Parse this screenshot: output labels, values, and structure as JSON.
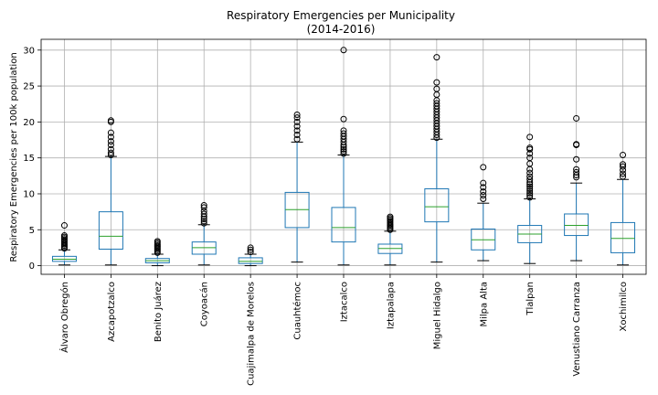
{
  "chart_data": {
    "type": "box",
    "title": "Respiratory Emergencies per Municipality",
    "subtitle": "(2014-2016)",
    "ylabel": "Respiratory Emergencies per 100k population",
    "xlabel": "",
    "ylim": [
      -1.2,
      31.5
    ],
    "yticks": [
      0,
      5,
      10,
      15,
      20,
      25,
      30
    ],
    "grid": true,
    "colors": {
      "box": "#1f77b4",
      "median": "#2ca02c",
      "cap": "#000000",
      "grid": "#b0b0b0"
    },
    "categories": [
      "Álvaro Obregón",
      "Azcapotzalco",
      "Benito Juárez",
      "Coyoacán",
      "Cuajimalpa de Morelos",
      "Cuauhtémoc",
      "Iztacalco",
      "Iztapalapa",
      "Miguel Hidalgo",
      "Milpa Alta",
      "Tlalpan",
      "Venustiano Carranza",
      "Xochimilco"
    ],
    "boxes": [
      {
        "whislo": 0.1,
        "q1": 0.6,
        "med": 0.9,
        "q3": 1.3,
        "whishi": 2.2,
        "fliers": [
          2.4,
          2.6,
          2.8,
          3.0,
          3.2,
          3.4,
          3.6,
          3.8,
          4.0,
          4.2,
          5.6
        ]
      },
      {
        "whislo": 0.1,
        "q1": 2.3,
        "med": 4.1,
        "q3": 7.5,
        "whishi": 15.2,
        "fliers": [
          15.4,
          15.7,
          16.2,
          16.8,
          17.3,
          17.9,
          18.5,
          20.0,
          20.2
        ]
      },
      {
        "whislo": 0.0,
        "q1": 0.4,
        "med": 0.7,
        "q3": 1.0,
        "whishi": 1.6,
        "fliers": [
          1.8,
          2.0,
          2.2,
          2.4,
          2.6,
          2.8,
          3.0,
          3.2,
          3.4
        ]
      },
      {
        "whislo": 0.1,
        "q1": 1.6,
        "med": 2.5,
        "q3": 3.3,
        "whishi": 5.7,
        "fliers": [
          5.9,
          6.2,
          6.5,
          6.8,
          7.2,
          7.6,
          8.1,
          8.4
        ]
      },
      {
        "whislo": 0.0,
        "q1": 0.3,
        "med": 0.6,
        "q3": 1.1,
        "whishi": 1.6,
        "fliers": [
          1.9,
          2.2,
          2.5
        ]
      },
      {
        "whislo": 0.5,
        "q1": 5.3,
        "med": 7.8,
        "q3": 10.2,
        "whishi": 17.2,
        "fliers": [
          17.6,
          18.2,
          18.8,
          19.4,
          20.0,
          20.6,
          21.0
        ]
      },
      {
        "whislo": 0.1,
        "q1": 3.3,
        "med": 5.3,
        "q3": 8.1,
        "whishi": 15.4,
        "fliers": [
          15.6,
          15.9,
          16.2,
          16.5,
          16.8,
          17.2,
          17.6,
          18.0,
          18.4,
          18.8,
          20.4,
          30.0
        ]
      },
      {
        "whislo": 0.1,
        "q1": 1.7,
        "med": 2.4,
        "q3": 3.0,
        "whishi": 4.8,
        "fliers": [
          5.0,
          5.2,
          5.4,
          5.6,
          5.8,
          6.0,
          6.2,
          6.4,
          6.6,
          6.8
        ]
      },
      {
        "whislo": 0.5,
        "q1": 6.1,
        "med": 8.2,
        "q3": 10.7,
        "whishi": 17.6,
        "fliers": [
          17.8,
          18.2,
          18.6,
          19.0,
          19.4,
          19.8,
          20.2,
          20.6,
          21.0,
          21.4,
          21.8,
          22.2,
          22.6,
          23.0,
          23.8,
          24.6,
          25.5,
          29.0
        ]
      },
      {
        "whislo": 0.7,
        "q1": 2.2,
        "med": 3.6,
        "q3": 5.1,
        "whishi": 8.7,
        "fliers": [
          9.3,
          9.8,
          10.3,
          10.9,
          11.5,
          13.7
        ]
      },
      {
        "whislo": 0.3,
        "q1": 3.2,
        "med": 4.4,
        "q3": 5.6,
        "whishi": 9.3,
        "fliers": [
          9.5,
          9.8,
          10.1,
          10.4,
          10.7,
          11.0,
          11.3,
          11.6,
          12.0,
          12.4,
          12.9,
          13.4,
          14.2,
          15.0,
          15.6,
          16.2,
          16.4,
          17.9
        ]
      },
      {
        "whislo": 0.7,
        "q1": 4.2,
        "med": 5.6,
        "q3": 7.2,
        "whishi": 11.5,
        "fliers": [
          12.3,
          12.6,
          13.0,
          13.4,
          14.8,
          16.8,
          16.9,
          20.5
        ]
      },
      {
        "whislo": 0.1,
        "q1": 1.8,
        "med": 3.8,
        "q3": 6.0,
        "whishi": 12.0,
        "fliers": [
          12.4,
          12.8,
          13.3,
          13.8,
          14.1,
          15.4
        ]
      }
    ]
  }
}
